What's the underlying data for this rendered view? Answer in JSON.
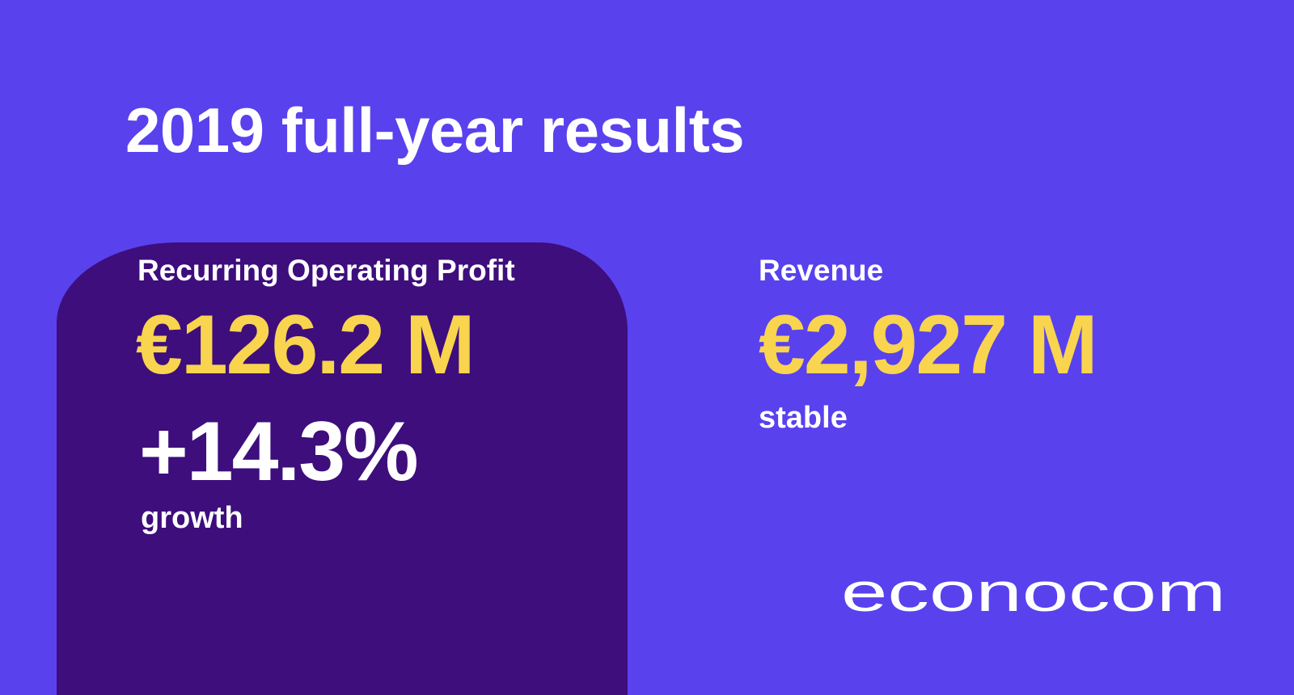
{
  "title": "2019 full-year results",
  "colors": {
    "background": "#5941ee",
    "panel": "#3d0e7c",
    "value_highlight": "#f9d44e",
    "text": "#ffffff"
  },
  "recurring_operating_profit": {
    "label": "Recurring Operating Profit",
    "value": "€126.2 M",
    "growth": "+14.3%",
    "growth_caption": "growth"
  },
  "revenue": {
    "label": "Revenue",
    "value": "€2,927 M",
    "caption": "stable"
  },
  "brand": {
    "logo_text": "econocom"
  }
}
